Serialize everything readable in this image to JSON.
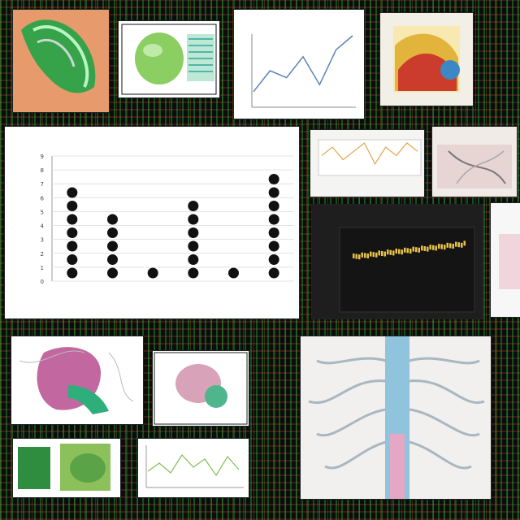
{
  "collage": {
    "main_chart": {
      "title": "",
      "left_label": "",
      "categories": [
        "",
        "",
        "",
        "",
        "",
        ""
      ],
      "y_ticks": [
        "0",
        "1",
        "2",
        "3",
        "4",
        "5",
        "6",
        "7",
        "8",
        "9"
      ]
    },
    "top_line_chart": {
      "title": ""
    },
    "dark_chart": {
      "title": ""
    }
  },
  "chart_data": [
    {
      "type": "scatter",
      "title": "",
      "x": [
        1,
        2,
        3,
        4,
        5,
        6
      ],
      "y": [
        7,
        5,
        1,
        6,
        1,
        8
      ],
      "ylim": [
        0,
        10
      ],
      "style": "stacked dot columns"
    },
    {
      "type": "line",
      "title": "",
      "x": [
        1,
        2,
        3,
        4,
        5,
        6,
        7
      ],
      "y": [
        2,
        5,
        4,
        7,
        3,
        8,
        10
      ]
    },
    {
      "type": "line",
      "title": "",
      "x": [
        1,
        2,
        3,
        4,
        5,
        6,
        7,
        8,
        9,
        10
      ],
      "y": [
        4,
        6,
        3,
        5,
        7,
        2,
        6,
        4,
        7,
        5
      ]
    }
  ]
}
